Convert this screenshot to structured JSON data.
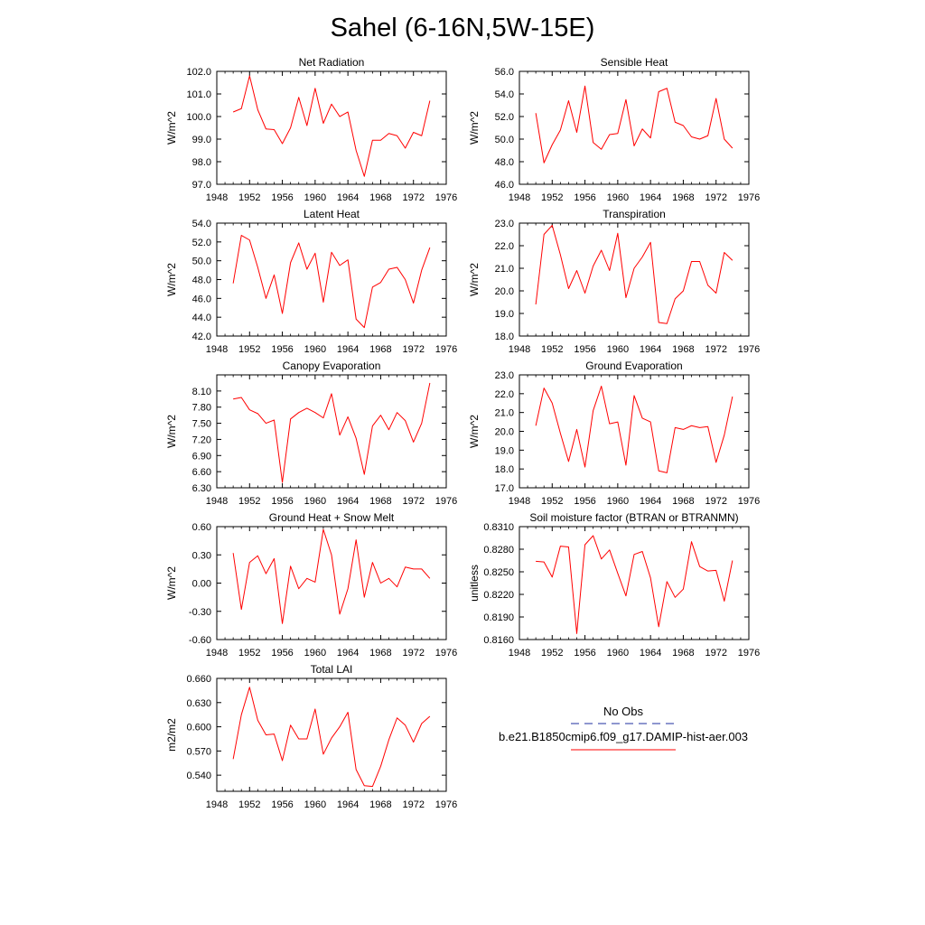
{
  "title": "Sahel (6-16N,5W-15E)",
  "legend": {
    "obs_label": "No Obs",
    "obs_color": "#1f2f9f",
    "model_label": "b.e21.B1850cmip6.f09_g17.DAMIP-hist-aer.003",
    "model_color": "#ff0000"
  },
  "chart_data": [
    {
      "type": "line",
      "title": "Net Radiation",
      "ylabel": "W/m^2",
      "xlim": [
        1948,
        1976
      ],
      "ylim": [
        97.0,
        102.0
      ],
      "xticks": [
        1948,
        1952,
        1956,
        1960,
        1964,
        1968,
        1972,
        1976
      ],
      "yticks": [
        "97.0",
        "98.0",
        "99.0",
        "100.0",
        "101.0",
        "102.0"
      ],
      "grid": false,
      "series": [
        {
          "x": [
            1950,
            1951,
            1952,
            1953,
            1954,
            1955,
            1956,
            1957,
            1958,
            1959,
            1960,
            1961,
            1962,
            1963,
            1964,
            1965,
            1966,
            1967,
            1968,
            1969,
            1970,
            1971,
            1972,
            1973,
            1974
          ],
          "values": [
            100.2,
            100.35,
            101.8,
            100.3,
            99.45,
            99.42,
            98.8,
            99.5,
            100.85,
            99.6,
            101.25,
            99.7,
            100.55,
            100.0,
            100.2,
            98.5,
            97.35,
            98.95,
            98.95,
            99.25,
            99.15,
            98.6,
            99.3,
            99.15,
            100.7
          ]
        }
      ]
    },
    {
      "type": "line",
      "title": "Sensible Heat",
      "ylabel": "W/m^2",
      "xlim": [
        1948,
        1976
      ],
      "ylim": [
        46.0,
        56.0
      ],
      "xticks": [
        1948,
        1952,
        1956,
        1960,
        1964,
        1968,
        1972,
        1976
      ],
      "yticks": [
        "46.0",
        "48.0",
        "50.0",
        "52.0",
        "54.0",
        "56.0"
      ],
      "grid": false,
      "series": [
        {
          "x": [
            1950,
            1951,
            1952,
            1953,
            1954,
            1955,
            1956,
            1957,
            1958,
            1959,
            1960,
            1961,
            1962,
            1963,
            1964,
            1965,
            1966,
            1967,
            1968,
            1969,
            1970,
            1971,
            1972,
            1973,
            1974
          ],
          "values": [
            52.3,
            47.9,
            49.5,
            50.8,
            53.4,
            50.6,
            54.7,
            49.7,
            49.1,
            50.4,
            50.5,
            53.5,
            49.4,
            50.9,
            50.1,
            54.2,
            54.5,
            51.5,
            51.2,
            50.2,
            50.0,
            50.3,
            53.6,
            50.0,
            49.2
          ]
        }
      ]
    },
    {
      "type": "line",
      "title": "Latent Heat",
      "ylabel": "W/m^2",
      "xlim": [
        1948,
        1976
      ],
      "ylim": [
        42.0,
        54.0
      ],
      "xticks": [
        1948,
        1952,
        1956,
        1960,
        1964,
        1968,
        1972,
        1976
      ],
      "yticks": [
        "42.0",
        "44.0",
        "46.0",
        "48.0",
        "50.0",
        "52.0",
        "54.0"
      ],
      "grid": false,
      "series": [
        {
          "x": [
            1950,
            1951,
            1952,
            1953,
            1954,
            1955,
            1956,
            1957,
            1958,
            1959,
            1960,
            1961,
            1962,
            1963,
            1964,
            1965,
            1966,
            1967,
            1968,
            1969,
            1970,
            1971,
            1972,
            1973,
            1974
          ],
          "values": [
            47.6,
            52.7,
            52.2,
            49.3,
            46.0,
            48.5,
            44.4,
            49.8,
            51.9,
            49.1,
            50.8,
            45.6,
            50.9,
            49.5,
            50.1,
            43.8,
            42.9,
            47.2,
            47.7,
            49.1,
            49.3,
            48.0,
            45.5,
            49.0,
            51.4
          ]
        }
      ]
    },
    {
      "type": "line",
      "title": "Transpiration",
      "ylabel": "W/m^2",
      "xlim": [
        1948,
        1976
      ],
      "ylim": [
        18.0,
        23.0
      ],
      "xticks": [
        1948,
        1952,
        1956,
        1960,
        1964,
        1968,
        1972,
        1976
      ],
      "yticks": [
        "18.0",
        "19.0",
        "20.0",
        "21.0",
        "22.0",
        "23.0"
      ],
      "grid": false,
      "series": [
        {
          "x": [
            1950,
            1951,
            1952,
            1953,
            1954,
            1955,
            1956,
            1957,
            1958,
            1959,
            1960,
            1961,
            1962,
            1963,
            1964,
            1965,
            1966,
            1967,
            1968,
            1969,
            1970,
            1971,
            1972,
            1973,
            1974
          ],
          "values": [
            19.4,
            22.5,
            22.9,
            21.6,
            20.1,
            20.9,
            19.9,
            21.1,
            21.8,
            20.9,
            22.55,
            19.7,
            21.0,
            21.5,
            22.15,
            18.6,
            18.55,
            19.65,
            20.0,
            21.3,
            21.3,
            20.25,
            19.9,
            21.7,
            21.35
          ]
        }
      ]
    },
    {
      "type": "line",
      "title": "Canopy Evaporation",
      "ylabel": "W/m^2",
      "xlim": [
        1948,
        1976
      ],
      "ylim": [
        6.3,
        8.4
      ],
      "xticks": [
        1948,
        1952,
        1956,
        1960,
        1964,
        1968,
        1972,
        1976
      ],
      "yticks": [
        "6.30",
        "6.60",
        "6.90",
        "7.20",
        "7.50",
        "7.80",
        "8.10"
      ],
      "grid": false,
      "series": [
        {
          "x": [
            1950,
            1951,
            1952,
            1953,
            1954,
            1955,
            1956,
            1957,
            1958,
            1959,
            1960,
            1961,
            1962,
            1963,
            1964,
            1965,
            1966,
            1967,
            1968,
            1969,
            1970,
            1971,
            1972,
            1973,
            1974
          ],
          "values": [
            7.95,
            7.98,
            7.75,
            7.68,
            7.5,
            7.56,
            6.4,
            7.58,
            7.7,
            7.78,
            7.7,
            7.6,
            8.05,
            7.28,
            7.62,
            7.22,
            6.55,
            7.45,
            7.65,
            7.38,
            7.7,
            7.55,
            7.15,
            7.5,
            8.25
          ]
        }
      ]
    },
    {
      "type": "line",
      "title": "Ground Evaporation",
      "ylabel": "W/m^2",
      "xlim": [
        1948,
        1976
      ],
      "ylim": [
        17.0,
        23.0
      ],
      "xticks": [
        1948,
        1952,
        1956,
        1960,
        1964,
        1968,
        1972,
        1976
      ],
      "yticks": [
        "17.0",
        "18.0",
        "19.0",
        "20.0",
        "21.0",
        "22.0",
        "23.0"
      ],
      "grid": false,
      "series": [
        {
          "x": [
            1950,
            1951,
            1952,
            1953,
            1954,
            1955,
            1956,
            1957,
            1958,
            1959,
            1960,
            1961,
            1962,
            1963,
            1964,
            1965,
            1966,
            1967,
            1968,
            1969,
            1970,
            1971,
            1972,
            1973,
            1974
          ],
          "values": [
            20.3,
            22.3,
            21.5,
            19.9,
            18.4,
            20.1,
            18.1,
            21.1,
            22.4,
            20.4,
            20.5,
            18.2,
            21.9,
            20.7,
            20.5,
            17.9,
            17.8,
            20.2,
            20.1,
            20.3,
            20.2,
            20.25,
            18.35,
            19.8,
            21.85
          ]
        }
      ]
    },
    {
      "type": "line",
      "title": "Ground Heat + Snow Melt",
      "ylabel": "W/m^2",
      "xlim": [
        1948,
        1976
      ],
      "ylim": [
        -0.6,
        0.6
      ],
      "xticks": [
        1948,
        1952,
        1956,
        1960,
        1964,
        1968,
        1972,
        1976
      ],
      "yticks": [
        "-0.60",
        "-0.30",
        "0.00",
        "0.30",
        "0.60"
      ],
      "grid": false,
      "series": [
        {
          "x": [
            1950,
            1951,
            1952,
            1953,
            1954,
            1955,
            1956,
            1957,
            1958,
            1959,
            1960,
            1961,
            1962,
            1963,
            1964,
            1965,
            1966,
            1967,
            1968,
            1969,
            1970,
            1971,
            1972,
            1973,
            1974
          ],
          "values": [
            0.32,
            -0.28,
            0.22,
            0.29,
            0.1,
            0.26,
            -0.43,
            0.18,
            -0.06,
            0.05,
            0.01,
            0.57,
            0.3,
            -0.33,
            -0.06,
            0.46,
            -0.15,
            0.22,
            0.0,
            0.05,
            -0.04,
            0.17,
            0.15,
            0.15,
            0.05
          ]
        }
      ]
    },
    {
      "type": "line",
      "title": "Soil moisture factor (BTRAN or BTRANMN)",
      "ylabel": "unitless",
      "xlim": [
        1948,
        1976
      ],
      "ylim": [
        0.816,
        0.831
      ],
      "xticks": [
        1948,
        1952,
        1956,
        1960,
        1964,
        1968,
        1972,
        1976
      ],
      "yticks": [
        "0.8160",
        "0.8190",
        "0.8220",
        "0.8250",
        "0.8280",
        "0.8310"
      ],
      "grid": false,
      "series": [
        {
          "x": [
            1950,
            1951,
            1952,
            1953,
            1954,
            1955,
            1956,
            1957,
            1958,
            1959,
            1960,
            1961,
            1962,
            1963,
            1964,
            1965,
            1966,
            1967,
            1968,
            1969,
            1970,
            1971,
            1972,
            1973,
            1974
          ],
          "values": [
            0.8264,
            0.8263,
            0.8243,
            0.8284,
            0.8283,
            0.8168,
            0.8286,
            0.8298,
            0.8267,
            0.8279,
            0.8248,
            0.8218,
            0.8273,
            0.8277,
            0.8242,
            0.8177,
            0.8237,
            0.8216,
            0.8227,
            0.829,
            0.8257,
            0.8251,
            0.8252,
            0.8211,
            0.8265
          ]
        }
      ]
    },
    {
      "type": "line",
      "title": "Total LAI",
      "ylabel": "m2/m2",
      "xlim": [
        1948,
        1976
      ],
      "ylim": [
        0.52,
        0.66
      ],
      "xticks": [
        1948,
        1952,
        1956,
        1960,
        1964,
        1968,
        1972,
        1976
      ],
      "yticks": [
        "0.540",
        "0.570",
        "0.600",
        "0.630",
        "0.660"
      ],
      "grid": false,
      "series": [
        {
          "x": [
            1950,
            1951,
            1952,
            1953,
            1954,
            1955,
            1956,
            1957,
            1958,
            1959,
            1960,
            1961,
            1962,
            1963,
            1964,
            1965,
            1966,
            1967,
            1968,
            1969,
            1970,
            1971,
            1972,
            1973,
            1974
          ],
          "values": [
            0.56,
            0.615,
            0.649,
            0.608,
            0.59,
            0.591,
            0.558,
            0.602,
            0.585,
            0.585,
            0.622,
            0.566,
            0.586,
            0.6,
            0.618,
            0.547,
            0.527,
            0.526,
            0.551,
            0.584,
            0.611,
            0.602,
            0.581,
            0.604,
            0.613
          ]
        }
      ]
    }
  ]
}
